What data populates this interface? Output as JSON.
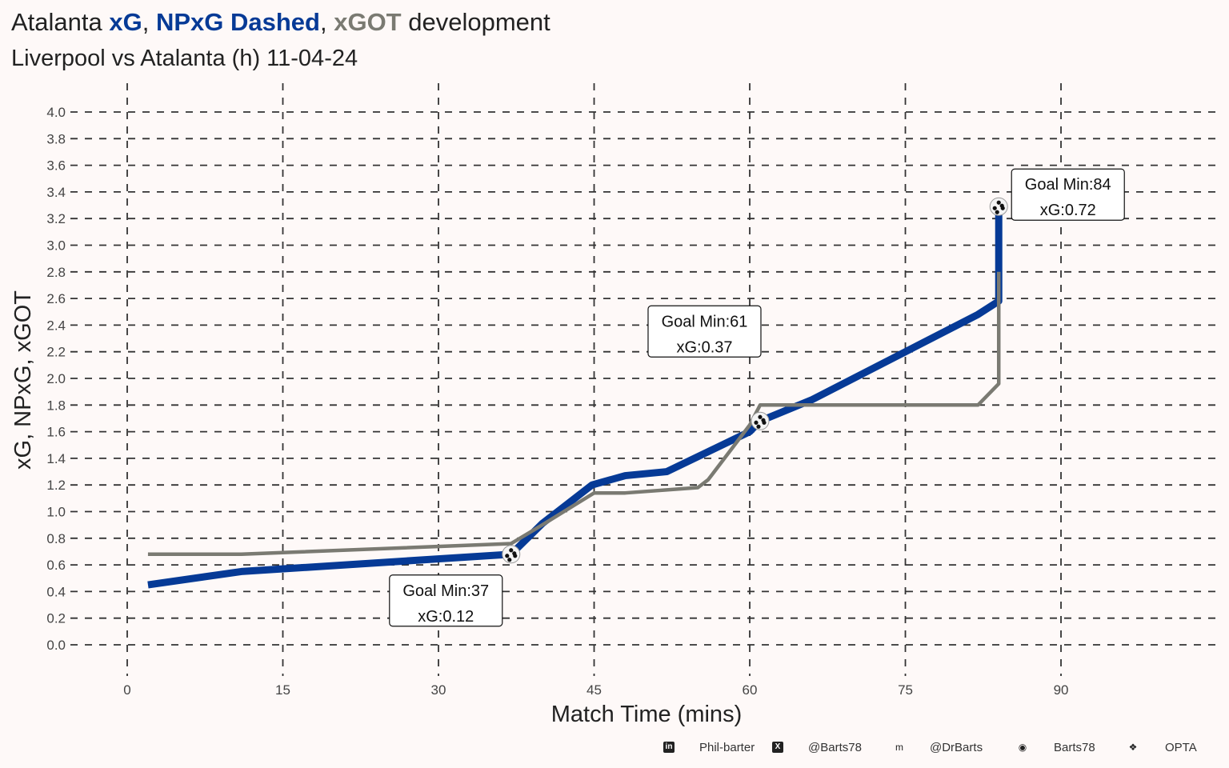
{
  "chart_data": {
    "type": "line",
    "title": {
      "prefix": "Atalanta ",
      "xg": "xG",
      "sep1": ", ",
      "npxg": "NPxG Dashed",
      "sep2": ", ",
      "xgot": "xGOT",
      "suffix": " development"
    },
    "subtitle": "Liverpool vs Atalanta (h) 11-04-24",
    "xlabel": "Match Time (mins)",
    "ylabel": "xG, NPxG, xGOT",
    "xlim": [
      -5,
      105
    ],
    "ylim": [
      0,
      4
    ],
    "xticks": [
      "0",
      "15",
      "30",
      "45",
      "60",
      "75",
      "90"
    ],
    "xtick_values": [
      0,
      15,
      30,
      45,
      60,
      75,
      90
    ],
    "yticks": [
      "0.0",
      "0.2",
      "0.4",
      "0.6",
      "0.8",
      "1.0",
      "1.2",
      "1.4",
      "1.6",
      "1.8",
      "2.0",
      "2.2",
      "2.4",
      "2.6",
      "2.8",
      "3.0",
      "3.2",
      "3.4",
      "3.6",
      "3.8",
      "4.0"
    ],
    "ytick_values": [
      0,
      0.2,
      0.4,
      0.6,
      0.8,
      1.0,
      1.2,
      1.4,
      1.6,
      1.8,
      2.0,
      2.2,
      2.4,
      2.6,
      2.8,
      3.0,
      3.2,
      3.4,
      3.6,
      3.8,
      4.0
    ],
    "grid": true,
    "series": [
      {
        "name": "xG",
        "color": "#063a96",
        "x": [
          2,
          11,
          37,
          40,
          44.8,
          48,
          52,
          60,
          61,
          66,
          75,
          82,
          84,
          84
        ],
        "y": [
          0.45,
          0.55,
          0.68,
          0.91,
          1.2,
          1.27,
          1.3,
          1.6,
          1.68,
          1.84,
          2.2,
          2.48,
          2.58,
          3.29
        ]
      },
      {
        "name": "xGOT",
        "color": "#7a7a72",
        "x": [
          2,
          11,
          37,
          40,
          45,
          48,
          55,
          56,
          60,
          61,
          82,
          84,
          84
        ],
        "y": [
          0.68,
          0.68,
          0.76,
          0.9,
          1.14,
          1.14,
          1.18,
          1.24,
          1.65,
          1.8,
          1.8,
          1.96,
          2.8
        ]
      }
    ],
    "goals": [
      {
        "min": 37,
        "y": 0.68,
        "line1": "Goal Min:37",
        "line2": "xG:0.12"
      },
      {
        "min": 61,
        "y": 1.68,
        "line1": "Goal Min:61",
        "line2": "xG:0.37"
      },
      {
        "min": 84,
        "y": 3.29,
        "line1": "Goal Min:84",
        "line2": "xG:0.72"
      }
    ]
  },
  "footer": [
    {
      "icon": "linkedin-icon",
      "glyph": "in",
      "text": "Phil-barter"
    },
    {
      "icon": "x-icon",
      "glyph": "X",
      "text": "@Barts78"
    },
    {
      "icon": "mastodon-icon",
      "glyph": "m",
      "text": "@DrBarts"
    },
    {
      "icon": "github-icon",
      "glyph": "◉",
      "text": "Barts78"
    },
    {
      "icon": "dropbox-icon",
      "glyph": "❖",
      "text": "OPTA"
    }
  ]
}
